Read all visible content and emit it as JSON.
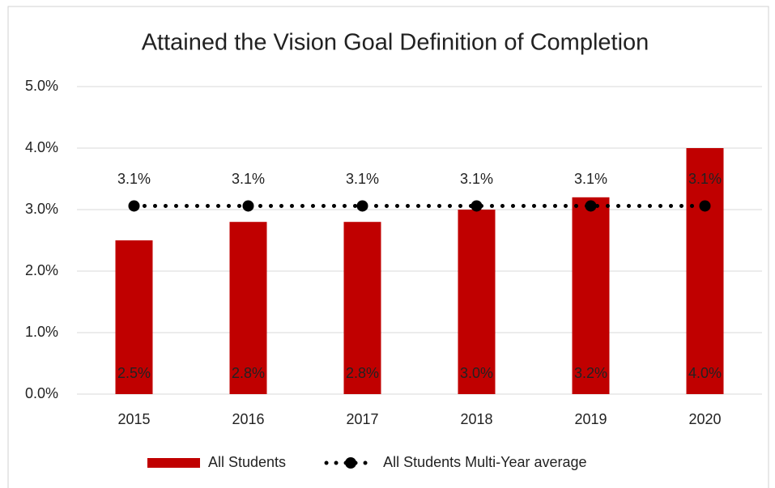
{
  "chart_data": {
    "type": "combo",
    "title": "Attained the Vision Goal Definition of Completion",
    "categories": [
      "2015",
      "2016",
      "2017",
      "2018",
      "2019",
      "2020"
    ],
    "series": [
      {
        "name": "All Students",
        "type": "bar",
        "color": "#c00000",
        "values": [
          2.5,
          2.8,
          2.8,
          3.0,
          3.2,
          4.0
        ],
        "value_labels": [
          "2.5%",
          "2.8%",
          "2.8%",
          "3.0%",
          "3.2%",
          "4.0%"
        ]
      },
      {
        "name": "All Students Multi-Year average",
        "type": "line",
        "color": "#000000",
        "values": [
          3.06,
          3.06,
          3.06,
          3.06,
          3.06,
          3.06
        ],
        "value_labels": [
          "3.1%",
          "3.1%",
          "3.1%",
          "3.1%",
          "3.1%",
          "3.1%"
        ]
      }
    ],
    "ylim": [
      0,
      5
    ],
    "yticks": [
      {
        "value": 0,
        "label": "0.0%"
      },
      {
        "value": 1,
        "label": "1.0%"
      },
      {
        "value": 2,
        "label": "2.0%"
      },
      {
        "value": 3,
        "label": "3.0%"
      },
      {
        "value": 4,
        "label": "4.0%"
      },
      {
        "value": 5,
        "label": "5.0%"
      }
    ],
    "grid": true,
    "legend": "bottom"
  }
}
